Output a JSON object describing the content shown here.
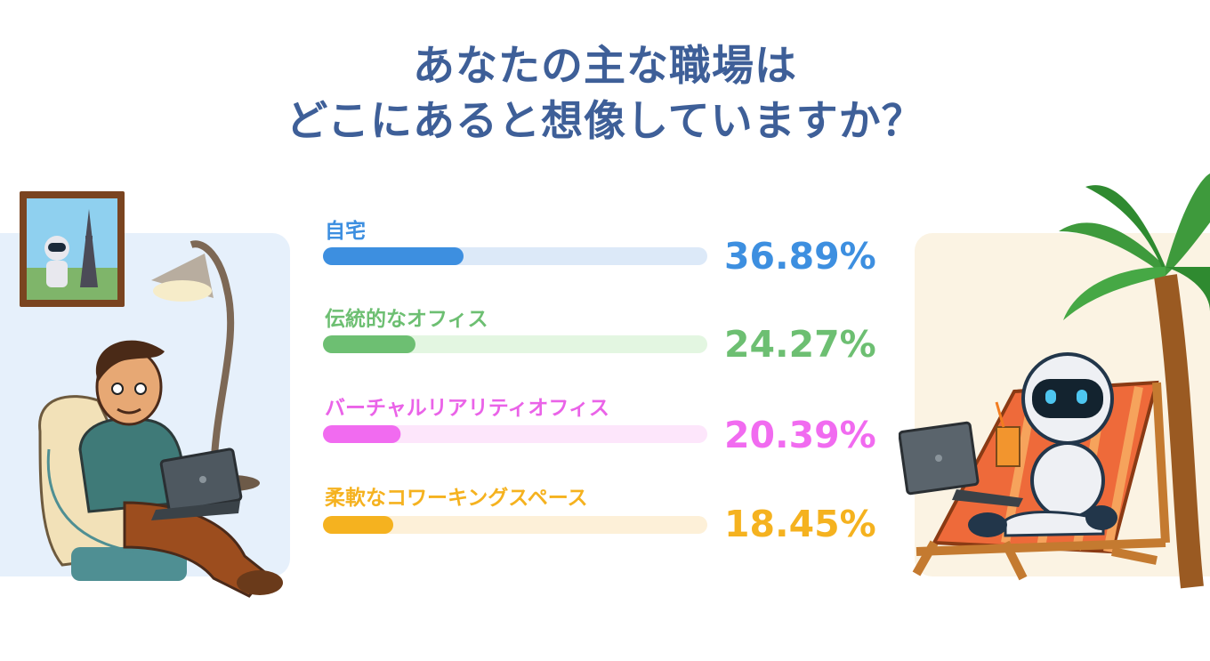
{
  "title_line1": "あなたの主な職場は",
  "title_line2": "どこにあると想像していますか？",
  "chart_data": {
    "type": "bar",
    "orientation": "horizontal",
    "categories": [
      "自宅",
      "伝統的なオフィス",
      "バーチャルリアリティオフィス",
      "柔軟なコワーキングスペース"
    ],
    "values": [
      36.89,
      24.27,
      20.39,
      18.45
    ],
    "value_labels": [
      "36.89%",
      "24.27%",
      "20.39%",
      "18.45%"
    ],
    "colors": [
      "#3d8fe0",
      "#6dbf72",
      "#f16bf0",
      "#f5b21f"
    ],
    "track_colors": [
      "#dce9f8",
      "#e3f6e1",
      "#fde6fb",
      "#fdf0d8"
    ],
    "label_colors": [
      "#3d8fe0",
      "#6dbf72",
      "#ea63e8",
      "#f5b21f"
    ],
    "xlim": [
      0,
      100
    ],
    "grid": false,
    "legend": "none"
  },
  "illustrations": {
    "left": "man-working-on-laptop-in-armchair-with-lamp",
    "right": "robot-on-beach-chair-with-laptop-and-palm-tree",
    "frame": "framed-robot-eiffel-tower-picture"
  }
}
